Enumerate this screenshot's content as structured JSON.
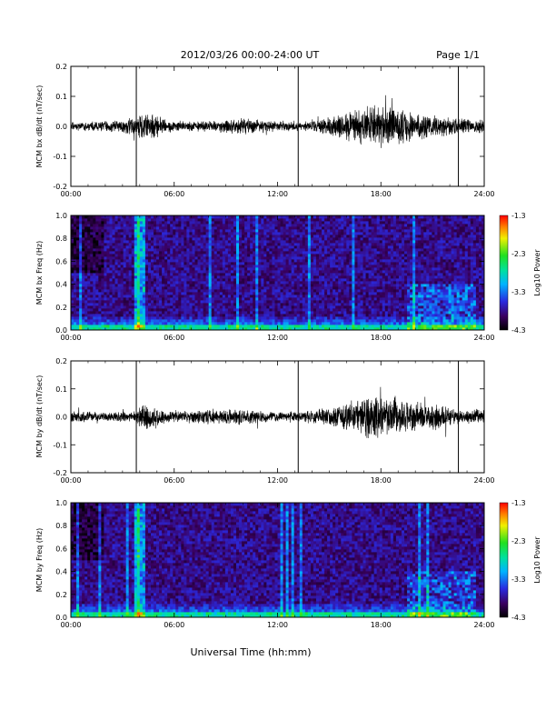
{
  "header": {
    "title": "2012/03/26  00:00-24:00 UT",
    "page": "Page 1/1"
  },
  "xlabel": "Universal Time (hh:mm)",
  "colors": {
    "background": "#ffffff",
    "trace": "#000000"
  },
  "chart_data": [
    {
      "type": "line",
      "ylabel": "MCM bx dB/dt (nT/sec)",
      "xlim": [
        0,
        24
      ],
      "ylim": [
        -0.2,
        0.2
      ],
      "xticks": [
        "00:00",
        "06:00",
        "12:00",
        "18:00",
        "24:00"
      ],
      "yticks": [
        "-0.2",
        "-0.1",
        "0.0",
        "0.1",
        "0.2"
      ],
      "spikes_hours": [
        3.8,
        13.2,
        22.5
      ],
      "envelope": {
        "hours": [
          0,
          2,
          3.8,
          4.2,
          6,
          8,
          10,
          12,
          14,
          15,
          16.5,
          17.5,
          18.5,
          20,
          21.5,
          22.5,
          24
        ],
        "amplitude": [
          0.015,
          0.02,
          0.03,
          0.06,
          0.02,
          0.02,
          0.03,
          0.02,
          0.02,
          0.035,
          0.06,
          0.08,
          0.07,
          0.05,
          0.04,
          0.03,
          0.025
        ]
      }
    },
    {
      "type": "heatmap",
      "ylabel": "MCM bx Freq (Hz)",
      "xlim": [
        0,
        24
      ],
      "ylim": [
        0,
        1.0
      ],
      "xticks": [
        "00:00",
        "06:00",
        "12:00",
        "18:00",
        "24:00"
      ],
      "yticks": [
        "0.0",
        "0.2",
        "0.4",
        "0.6",
        "0.8",
        "1.0"
      ],
      "colorbar": {
        "label": "Log10 Power",
        "ticks": [
          "-1.3",
          "-2.3",
          "-3.3",
          "-4.3"
        ],
        "range": [
          -4.3,
          -1.3
        ]
      }
    },
    {
      "type": "line",
      "ylabel": "MCM by dB/dt (nT/sec)",
      "xlim": [
        0,
        24
      ],
      "ylim": [
        -0.2,
        0.2
      ],
      "xticks": [
        "00:00",
        "06:00",
        "12:00",
        "18:00",
        "24:00"
      ],
      "yticks": [
        "-0.2",
        "-0.1",
        "0.0",
        "0.1",
        "0.2"
      ],
      "spikes_hours": [
        3.8,
        13.2,
        22.5
      ],
      "envelope": {
        "hours": [
          0,
          2,
          3.8,
          4.2,
          6,
          8,
          10,
          12,
          14,
          15,
          16.5,
          17.5,
          18.5,
          20,
          21.5,
          22.5,
          24
        ],
        "amplitude": [
          0.02,
          0.02,
          0.02,
          0.05,
          0.02,
          0.03,
          0.03,
          0.02,
          0.025,
          0.04,
          0.07,
          0.09,
          0.08,
          0.06,
          0.05,
          0.03,
          0.03
        ]
      }
    },
    {
      "type": "heatmap",
      "ylabel": "MCM by Freq (Hz)",
      "xlim": [
        0,
        24
      ],
      "ylim": [
        0,
        1.0
      ],
      "xticks": [
        "00:00",
        "06:00",
        "12:00",
        "18:00",
        "24:00"
      ],
      "yticks": [
        "0.0",
        "0.2",
        "0.4",
        "0.6",
        "0.8",
        "1.0"
      ],
      "colorbar": {
        "label": "Log10 Power",
        "ticks": [
          "-1.3",
          "-2.3",
          "-3.3",
          "-4.3"
        ],
        "range": [
          -4.3,
          -1.3
        ]
      }
    }
  ]
}
